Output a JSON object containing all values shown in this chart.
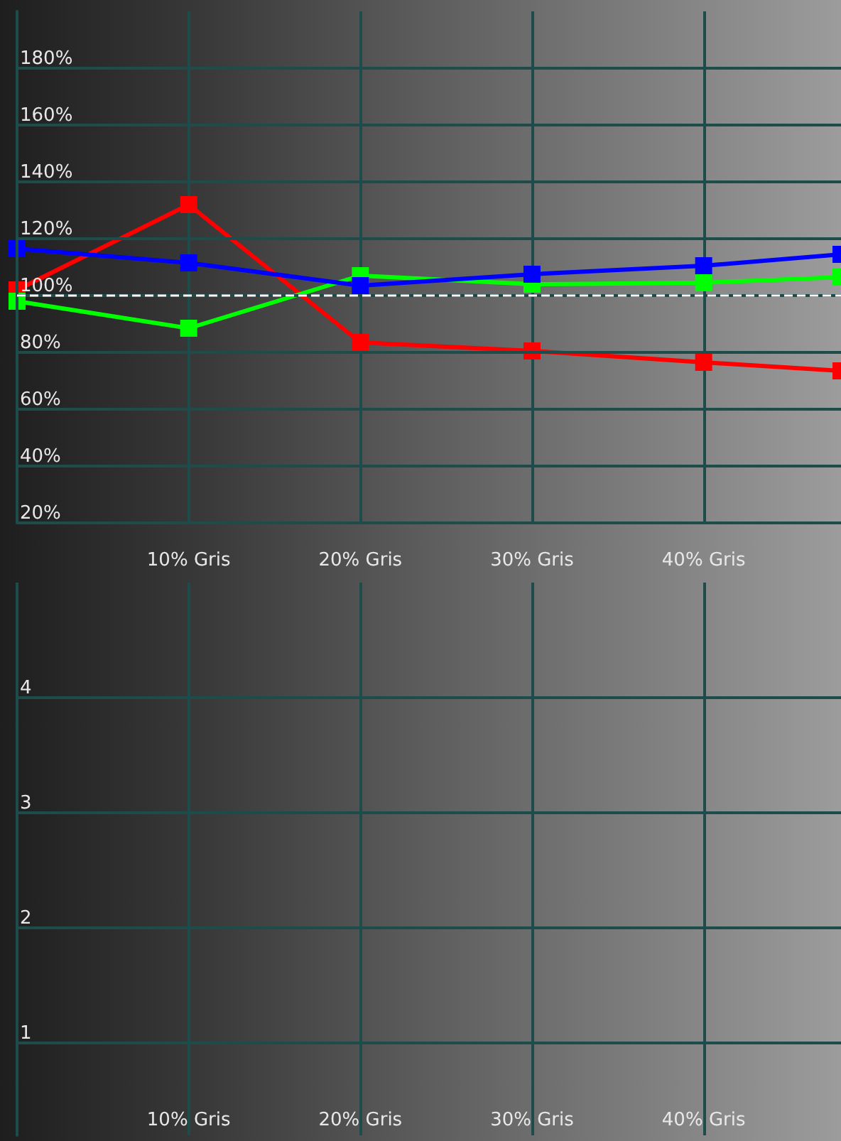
{
  "chart_data": [
    {
      "type": "line",
      "x": [
        0,
        10,
        20,
        30,
        40,
        48
      ],
      "xlim": [
        0,
        48
      ],
      "xticks": [
        {
          "value": 10,
          "label": "10% Gris"
        },
        {
          "value": 20,
          "label": "20% Gris"
        },
        {
          "value": 30,
          "label": "30% Gris"
        },
        {
          "value": 40,
          "label": "40% Gris"
        }
      ],
      "ylim": [
        20,
        200
      ],
      "yticks": [
        {
          "value": 20,
          "label": "20%"
        },
        {
          "value": 40,
          "label": "40%"
        },
        {
          "value": 60,
          "label": "60%"
        },
        {
          "value": 80,
          "label": "80%"
        },
        {
          "value": 100,
          "label": "100%"
        },
        {
          "value": 120,
          "label": "120%"
        },
        {
          "value": 140,
          "label": "140%"
        },
        {
          "value": 160,
          "label": "160%"
        },
        {
          "value": 180,
          "label": "180%"
        }
      ],
      "grid": true,
      "marker": "square",
      "line_style": "solid",
      "series": [
        {
          "color": "#ff0000",
          "values": [
            102,
            132,
            83.5,
            80.5,
            76.5,
            73.5
          ]
        },
        {
          "color": "#00ff00",
          "values": [
            98,
            88.5,
            107,
            104,
            104.5,
            106.5
          ]
        },
        {
          "color": "#0000ff",
          "values": [
            116.5,
            111.5,
            103.5,
            107.5,
            110.5,
            114.5
          ]
        }
      ],
      "ref_lines": [
        {
          "axis": "y",
          "value": 100,
          "color": "#ffffff",
          "line_style": "dashed"
        }
      ]
    },
    {
      "type": "line",
      "xlim": [
        0,
        48
      ],
      "xticks": [
        {
          "value": 10,
          "label": "10% Gris"
        },
        {
          "value": 20,
          "label": "20% Gris"
        },
        {
          "value": 30,
          "label": "30% Gris"
        },
        {
          "value": 40,
          "label": "40% Gris"
        }
      ],
      "ylim": [
        0.2,
        5
      ],
      "yticks": [
        1,
        2,
        3,
        4
      ],
      "grid": true
    }
  ]
}
